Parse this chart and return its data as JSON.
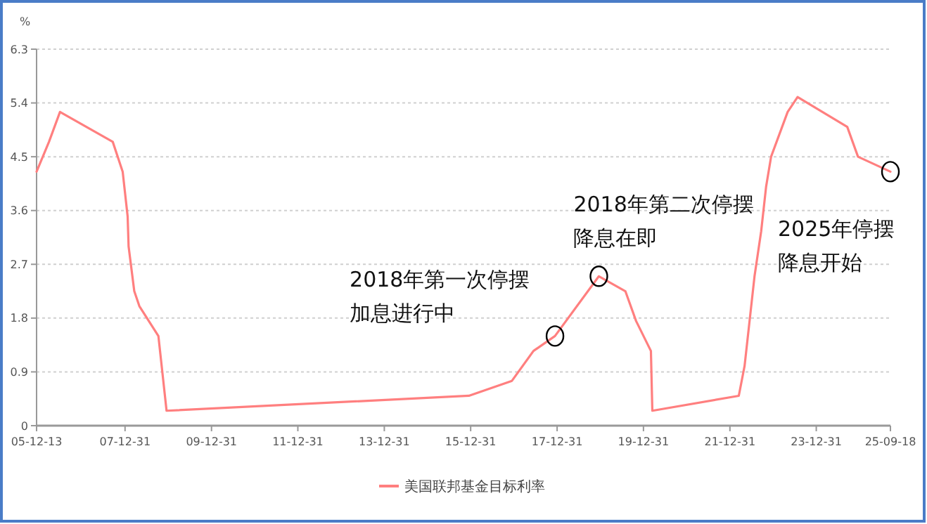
{
  "chart_data": {
    "type": "line",
    "ylabel": "%",
    "x": [
      "2005-12-13",
      "2006-03-28",
      "2006-06-29",
      "2007-09-18",
      "2007-12-11",
      "2008-01-22",
      "2008-01-30",
      "2008-03-18",
      "2008-04-30",
      "2008-10-08",
      "2008-12-16",
      "2015-12-16",
      "2016-12-14",
      "2017-06-14",
      "2017-12-13",
      "2018-12-19",
      "2019-07-31",
      "2019-10-30",
      "2020-03-03",
      "2020-03-15",
      "2022-03-16",
      "2022-05-04",
      "2022-06-15",
      "2022-07-27",
      "2022-09-21",
      "2022-11-02",
      "2022-12-14",
      "2023-05-03",
      "2023-07-26",
      "2024-09-18",
      "2024-12-18",
      "2025-09-18"
    ],
    "series": [
      {
        "name": "美国联邦基金目标利率",
        "color": "#ff7f7f",
        "values": [
          4.25,
          4.75,
          5.25,
          4.75,
          4.25,
          3.5,
          3.0,
          2.25,
          2.0,
          1.5,
          0.25,
          0.5,
          0.75,
          1.25,
          1.5,
          2.5,
          2.25,
          1.75,
          1.25,
          0.25,
          0.5,
          1.0,
          1.75,
          2.5,
          3.25,
          4.0,
          4.5,
          5.25,
          5.5,
          5.0,
          4.5,
          4.25
        ]
      }
    ],
    "xlim": [
      "2005-12-13",
      "2025-09-18"
    ],
    "xticks": [
      {
        "value": "2005-12-13",
        "label": "05-12-13"
      },
      {
        "value": "2007-12-31",
        "label": "07-12-31"
      },
      {
        "value": "2009-12-31",
        "label": "09-12-31"
      },
      {
        "value": "2011-12-31",
        "label": "11-12-31"
      },
      {
        "value": "2013-12-31",
        "label": "13-12-31"
      },
      {
        "value": "2015-12-31",
        "label": "15-12-31"
      },
      {
        "value": "2017-12-31",
        "label": "17-12-31"
      },
      {
        "value": "2019-12-31",
        "label": "19-12-31"
      },
      {
        "value": "2021-12-31",
        "label": "21-12-31"
      },
      {
        "value": "2023-12-31",
        "label": "23-12-31"
      },
      {
        "value": "2025-09-18",
        "label": "25-09-18"
      }
    ],
    "ylim": [
      0,
      6.3
    ],
    "yticks": [
      0,
      0.9,
      1.8,
      2.7,
      3.6,
      4.5,
      5.4,
      6.3
    ],
    "grid": "y",
    "legend": "bottom",
    "marker": "none",
    "line_style": "solid",
    "annotations": [
      {
        "text": "2018年第一次停摆加息进行中",
        "x": "2017-12-13",
        "y": 1.5
      },
      {
        "text": "2018年第二次停摆降息在即",
        "x": "2018-12-19",
        "y": 2.5
      },
      {
        "text": "2025年停摆降息开始",
        "x": "2025-09-18",
        "y": 4.25
      }
    ]
  }
}
